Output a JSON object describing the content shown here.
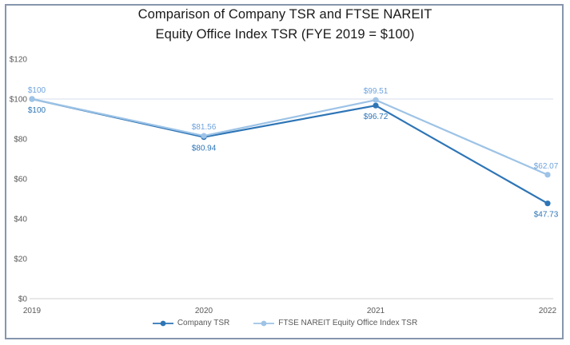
{
  "chart_data": {
    "type": "line",
    "title": "Comparison of Company TSR and FTSE NAREIT Equity Office Index TSR (FYE 2019 = $100)",
    "title_lines": [
      "Comparison of Company TSR and FTSE NAREIT",
      "Equity Office Index TSR (FYE 2019 = $100)"
    ],
    "categories": [
      "2019",
      "2020",
      "2021",
      "2022"
    ],
    "series": [
      {
        "name": "Company TSR",
        "values": [
          100,
          80.94,
          96.72,
          47.73
        ],
        "point_labels": [
          "$100",
          "$80.94",
          "$96.72",
          "$47.73"
        ],
        "color": "#2E75B6",
        "label_color": "#2E75B6",
        "label_placement": "below"
      },
      {
        "name": "FTSE NAREIT Equity Office Index TSR",
        "values": [
          100,
          81.56,
          99.51,
          62.07
        ],
        "point_labels": [
          "$100",
          "$81.56",
          "$99.51",
          "$62.07"
        ],
        "color": "#9DC3E6",
        "label_color": "#6FA3DC",
        "label_placement": "above"
      }
    ],
    "y_tick_values": [
      120,
      100,
      80,
      60,
      40,
      20,
      0
    ],
    "y_tick_labels": [
      "$120",
      "$100",
      "$80",
      "$60",
      "$40",
      "$20",
      "$0"
    ],
    "ylim": [
      0,
      120
    ],
    "gridlines": [
      {
        "value": 100,
        "color": "#DDE3EF"
      },
      {
        "value": 0,
        "color": "#D9D9D9"
      }
    ],
    "legend_position": "bottom",
    "axis_label_color": "#595959"
  }
}
